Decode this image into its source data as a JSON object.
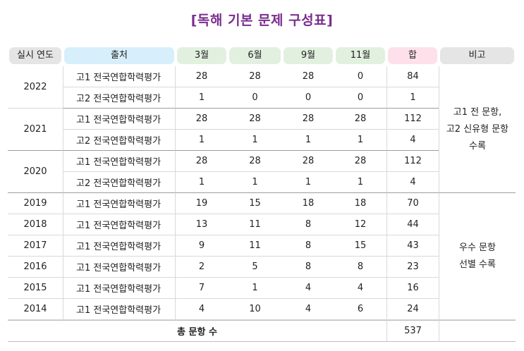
{
  "title": "[독해 기본 문제 구성표]",
  "headers": [
    "실시 연도",
    "출처",
    "3월",
    "6월",
    "9월",
    "11월",
    "합",
    "비고"
  ],
  "groups_2020_2022": [
    {
      "year": "2022",
      "rows": [
        {
          "source": "고1 전국연합학력평가",
          "m3": "28",
          "m6": "28",
          "m9": "28",
          "m11": "0",
          "sum": "84"
        },
        {
          "source": "고2 전국연합학력평가",
          "m3": "1",
          "m6": "0",
          "m9": "0",
          "m11": "0",
          "sum": "1"
        }
      ]
    },
    {
      "year": "2021",
      "rows": [
        {
          "source": "고1 전국연합학력평가",
          "m3": "28",
          "m6": "28",
          "m9": "28",
          "m11": "28",
          "sum": "112"
        },
        {
          "source": "고2 전국연합학력평가",
          "m3": "1",
          "m6": "1",
          "m9": "1",
          "m11": "1",
          "sum": "4"
        }
      ]
    },
    {
      "year": "2020",
      "rows": [
        {
          "source": "고1 전국연합학력평가",
          "m3": "28",
          "m6": "28",
          "m9": "28",
          "m11": "28",
          "sum": "112"
        },
        {
          "source": "고2 전국연합학력평가",
          "m3": "1",
          "m6": "1",
          "m9": "1",
          "m11": "1",
          "sum": "4"
        }
      ]
    }
  ],
  "note_2020_2022": "고1 전 문항,\n고2 신유형 문항\n수록",
  "rows_2014_2019": [
    {
      "year": "2019",
      "source": "고1 전국연합학력평가",
      "m3": "19",
      "m6": "15",
      "m9": "18",
      "m11": "18",
      "sum": "70"
    },
    {
      "year": "2018",
      "source": "고1 전국연합학력평가",
      "m3": "13",
      "m6": "11",
      "m9": "8",
      "m11": "12",
      "sum": "44"
    },
    {
      "year": "2017",
      "source": "고1 전국연합학력평가",
      "m3": "9",
      "m6": "11",
      "m9": "8",
      "m11": "15",
      "sum": "43"
    },
    {
      "year": "2016",
      "source": "고1 전국연합학력평가",
      "m3": "2",
      "m6": "5",
      "m9": "8",
      "m11": "8",
      "sum": "23"
    },
    {
      "year": "2015",
      "source": "고1 전국연합학력평가",
      "m3": "7",
      "m6": "1",
      "m9": "4",
      "m11": "4",
      "sum": "16"
    },
    {
      "year": "2014",
      "source": "고1 전국연합학력평가",
      "m3": "4",
      "m6": "10",
      "m9": "4",
      "m11": "6",
      "sum": "24"
    }
  ],
  "note_2014_2019": "우수 문항\n선별 수록",
  "total_label": "총 문항 수",
  "total_value": "537",
  "colors": {
    "title": "#7a2d8f",
    "header_gray": "#e5e5e5",
    "header_blue": "#d7eefb",
    "header_green": "#e2f0e0",
    "header_pink": "#fde0ea"
  }
}
